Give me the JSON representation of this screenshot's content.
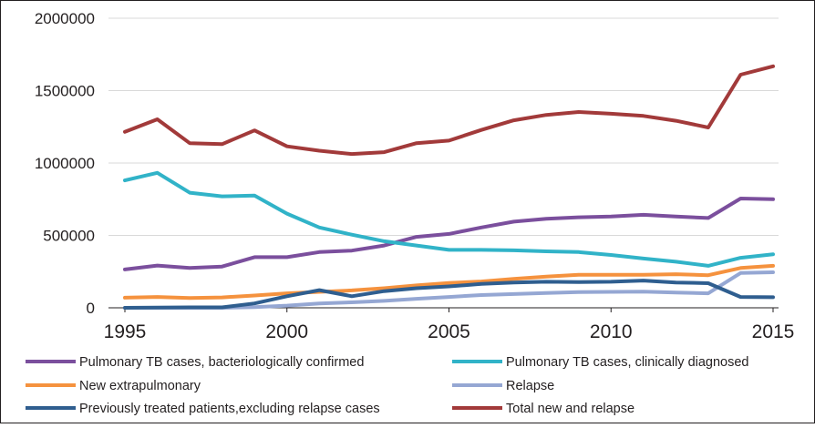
{
  "chart_data": {
    "type": "line",
    "title": "",
    "xlabel": "",
    "ylabel": "",
    "x": [
      1995,
      1996,
      1997,
      1998,
      1999,
      2000,
      2001,
      2002,
      2003,
      2004,
      2005,
      2006,
      2007,
      2008,
      2009,
      2010,
      2011,
      2012,
      2013,
      2014,
      2015
    ],
    "xlim": [
      1995,
      2015
    ],
    "ylim": [
      0,
      2000000
    ],
    "xticks": [
      "1995",
      "2000",
      "2005",
      "2010",
      "2015"
    ],
    "yticks": [
      "0",
      "500000",
      "1000000",
      "1500000",
      "2000000"
    ],
    "grid": "horizontal",
    "legend_position": "bottom",
    "series": [
      {
        "name": "Pulmonary TB cases, bacteriologically confirmed",
        "color": "#7b4f9d",
        "values": [
          265000,
          292000,
          275000,
          285000,
          350000,
          350000,
          385000,
          395000,
          430000,
          490000,
          510000,
          555000,
          595000,
          615000,
          625000,
          630000,
          642000,
          630000,
          620000,
          755000,
          750000
        ]
      },
      {
        "name": "Pulmonary TB cases, clinically diagnosed",
        "color": "#31b3c8",
        "values": [
          880000,
          932000,
          795000,
          770000,
          775000,
          650000,
          555000,
          505000,
          460000,
          430000,
          400000,
          400000,
          397000,
          390000,
          385000,
          365000,
          340000,
          318000,
          290000,
          345000,
          370000
        ]
      },
      {
        "name": "New extrapulmonary",
        "color": "#f5923e",
        "values": [
          70000,
          75000,
          68000,
          72000,
          85000,
          100000,
          110000,
          120000,
          135000,
          155000,
          172000,
          182000,
          200000,
          215000,
          228000,
          228000,
          228000,
          232000,
          225000,
          275000,
          290000
        ]
      },
      {
        "name": "Relapse",
        "color": "#95a7d3",
        "values": [
          0,
          0,
          0,
          0,
          5000,
          15000,
          30000,
          38000,
          48000,
          62000,
          75000,
          88000,
          95000,
          102000,
          108000,
          110000,
          112000,
          105000,
          100000,
          240000,
          245000
        ]
      },
      {
        "name": "Previously treated patients,excluding relapse cases",
        "color": "#2f5e8f",
        "values": [
          0,
          2000,
          3000,
          3000,
          30000,
          80000,
          122000,
          80000,
          115000,
          135000,
          148000,
          165000,
          175000,
          180000,
          178000,
          180000,
          188000,
          175000,
          170000,
          75000,
          73000
        ]
      },
      {
        "name": "Total new and relapse",
        "color": "#a23a3a",
        "values": [
          1215000,
          1302000,
          1137000,
          1130000,
          1225000,
          1115000,
          1085000,
          1062000,
          1075000,
          1137000,
          1155000,
          1228000,
          1295000,
          1332000,
          1352000,
          1340000,
          1325000,
          1292000,
          1245000,
          1610000,
          1668000
        ]
      }
    ]
  }
}
